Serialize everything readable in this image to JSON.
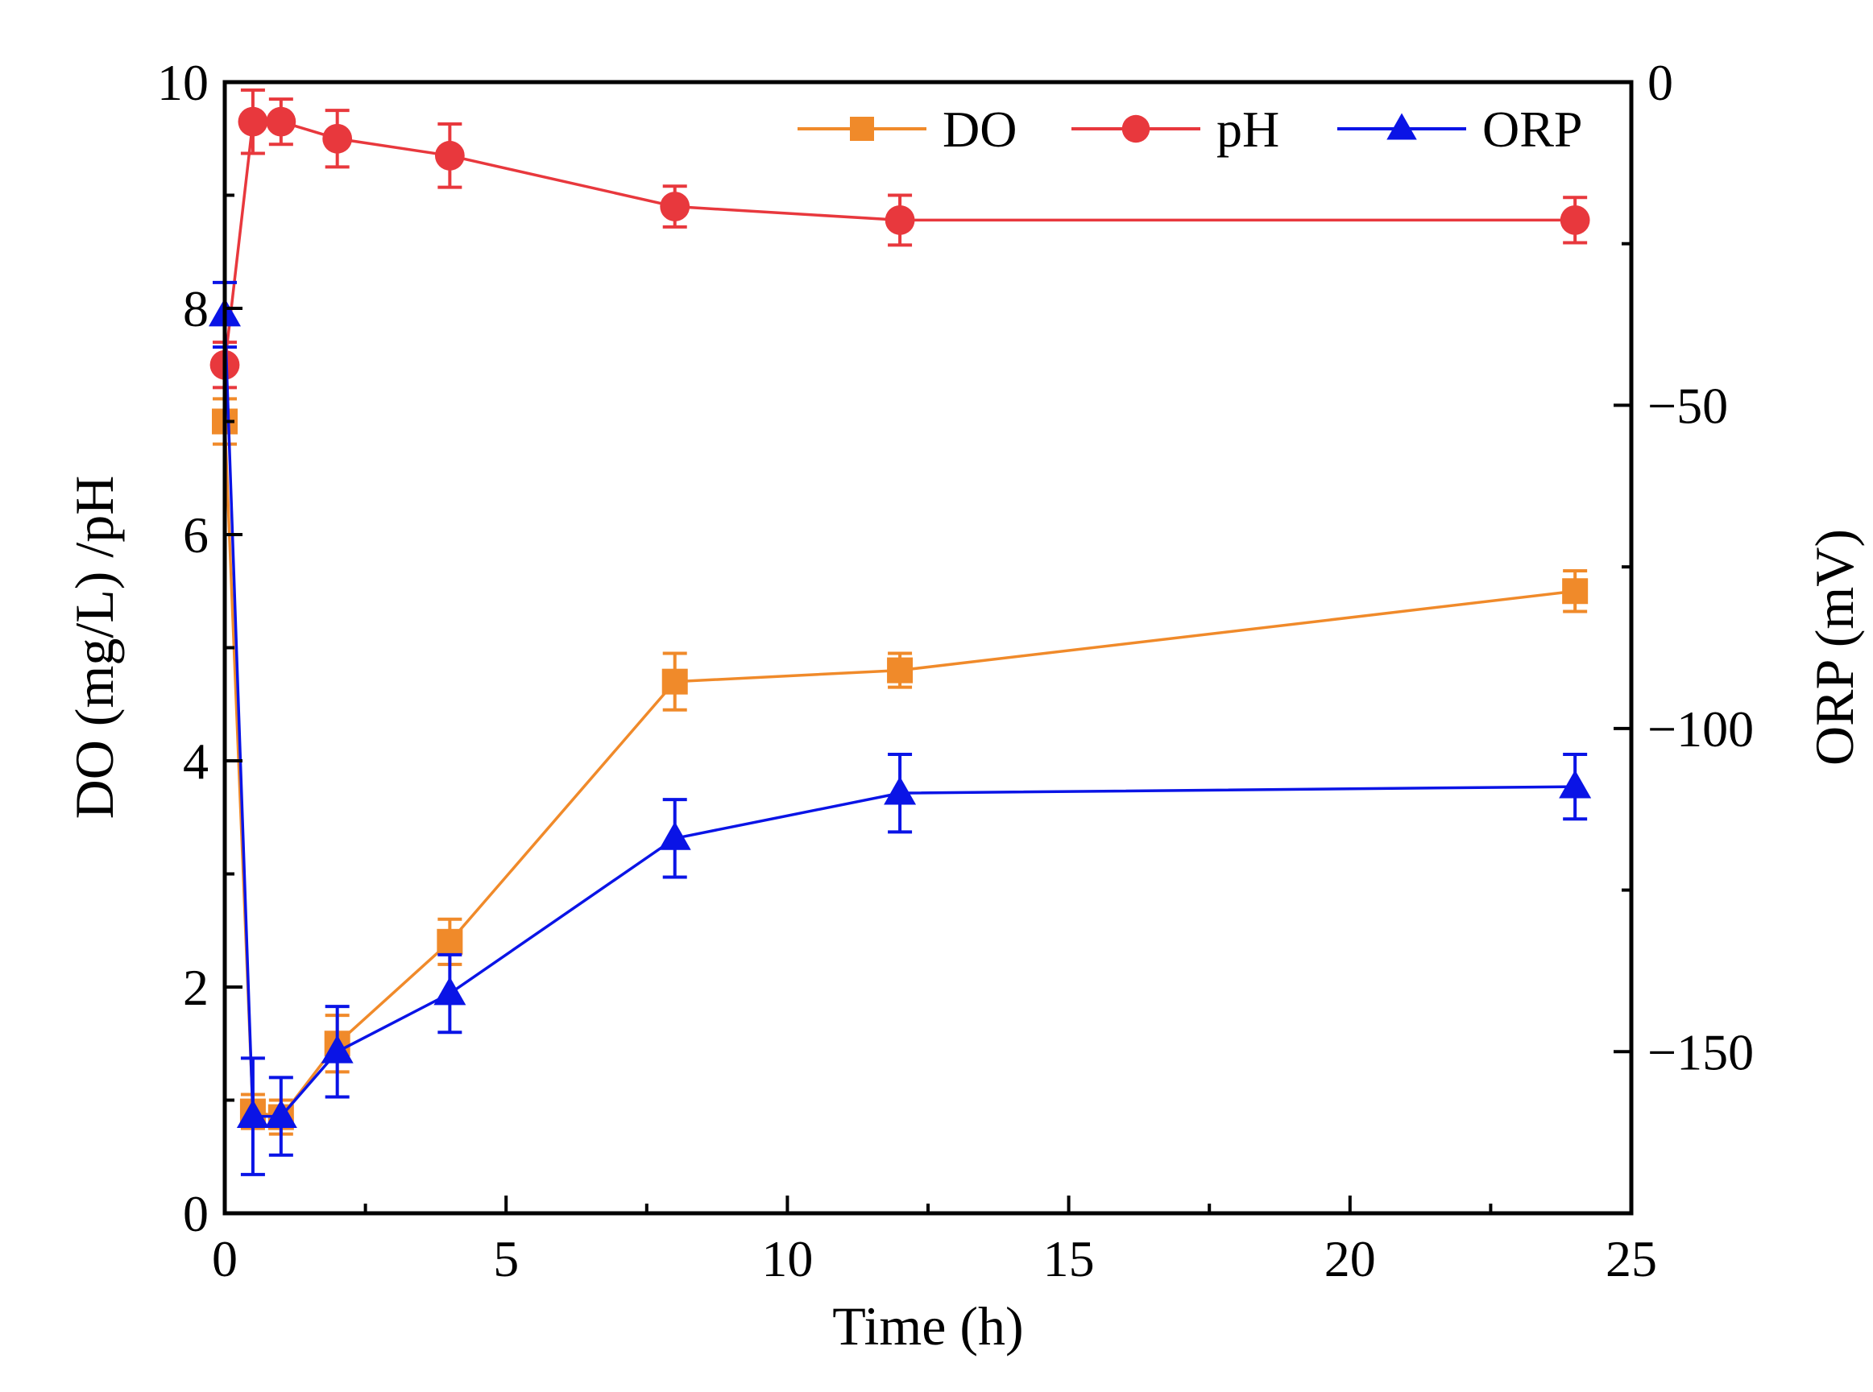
{
  "chart_data": {
    "type": "line",
    "title": "",
    "xlabel": "Time (h)",
    "ylabel": "DO (mg/L) /pH",
    "y2label": "ORP (mV)",
    "xlim": [
      0,
      25
    ],
    "ylim": [
      0,
      10
    ],
    "y2lim": [
      -175,
      0
    ],
    "xticks": [
      "0",
      "5",
      "10",
      "15",
      "20",
      "25"
    ],
    "yticks": [
      "0",
      "2",
      "4",
      "6",
      "8",
      "10"
    ],
    "y2ticks": [
      "0",
      "−50",
      "−100",
      "−150"
    ],
    "grid": false,
    "legend_position": "top-right",
    "x": [
      0,
      0.5,
      1,
      2,
      4,
      8,
      12,
      24
    ],
    "series": [
      {
        "name": "DO",
        "axis": "left",
        "color": "#f08a2a",
        "marker": "square",
        "values": [
          7.0,
          0.9,
          0.85,
          1.5,
          2.4,
          4.7,
          4.8,
          5.5
        ],
        "errors": [
          0.2,
          0.15,
          0.15,
          0.25,
          0.2,
          0.25,
          0.15,
          0.18
        ]
      },
      {
        "name": "pH",
        "axis": "left",
        "color": "#e8383d",
        "marker": "circle",
        "values": [
          7.5,
          9.65,
          9.65,
          9.5,
          9.35,
          8.9,
          8.78,
          8.78
        ],
        "errors": [
          0.2,
          0.28,
          0.2,
          0.25,
          0.28,
          0.18,
          0.22,
          0.2
        ]
      },
      {
        "name": "ORP",
        "axis": "right",
        "color": "#0a14e6",
        "marker": "triangle",
        "values": [
          -36,
          -160,
          -160,
          -150,
          -141,
          -117,
          -110,
          -109
        ],
        "errors": [
          5,
          9,
          6,
          7,
          6,
          6,
          6,
          5
        ]
      }
    ]
  }
}
